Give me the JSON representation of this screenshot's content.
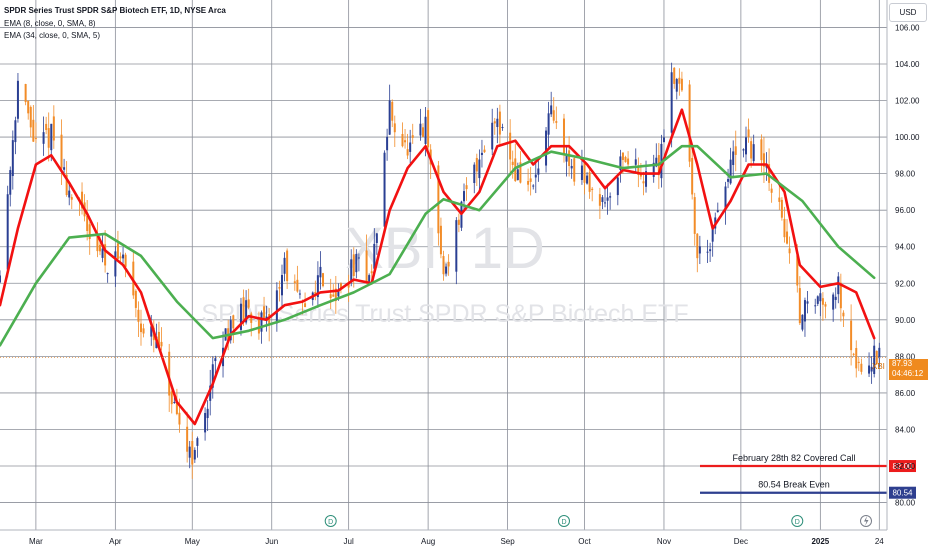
{
  "header": {
    "title": "SPDR Series Trust SPDR S&P Biotech ETF, 1D, NYSE Arca",
    "indicator_1": "EMA (8, close, 0, SMA, 8)",
    "indicator_2": "EMA (34, close, 0, SMA, 5)"
  },
  "currency_button": "USD",
  "watermark": {
    "symbol": "XBI, 1D",
    "name": "SPDR Series Trust SPDR S&P Biotech ETF"
  },
  "last_price": {
    "symbol": "XBI",
    "price": "87.93",
    "countdown": "04:46:12"
  },
  "events": [
    "D",
    "D",
    "D"
  ],
  "flash_icon": "lightning-icon",
  "colors": {
    "candle_up": "#2a3f93",
    "candle_down": "#f28c28",
    "ema_fast": "#f21111",
    "ema_slow": "#4caf50",
    "covered_call": "#ec1c1c",
    "break_even": "#2e3f8f",
    "price_tag": "#ef8a1e"
  },
  "chart_data": {
    "type": "candlestick",
    "y_axis": {
      "min": 78.5,
      "max": 107.5,
      "ticks": [
        80,
        82,
        84,
        86,
        88,
        90,
        92,
        94,
        96,
        98,
        100,
        102,
        104,
        106
      ]
    },
    "x_axis": {
      "range": [
        "2024-02-16",
        "2025-01-27"
      ],
      "ticks": [
        {
          "date": "2024-03-01",
          "label": "Mar"
        },
        {
          "date": "2024-04-01",
          "label": "Apr"
        },
        {
          "date": "2024-05-01",
          "label": "May"
        },
        {
          "date": "2024-06-01",
          "label": "Jun"
        },
        {
          "date": "2024-07-01",
          "label": "Jul"
        },
        {
          "date": "2024-08-01",
          "label": "Aug"
        },
        {
          "date": "2024-09-01",
          "label": "Sep"
        },
        {
          "date": "2024-10-01",
          "label": "Oct"
        },
        {
          "date": "2024-11-01",
          "label": "Nov"
        },
        {
          "date": "2024-12-01",
          "label": "Dec"
        },
        {
          "date": "2025-01-01",
          "label": "2025"
        },
        {
          "date": "2025-01-24",
          "label": "24"
        }
      ]
    },
    "grid": true,
    "price_path": [
      [
        "2024-02-16",
        92.5
      ],
      [
        "2024-02-23",
        103.0
      ],
      [
        "2024-03-01",
        99.5
      ],
      [
        "2024-03-07",
        100.2
      ],
      [
        "2024-03-14",
        97.0
      ],
      [
        "2024-03-21",
        95.2
      ],
      [
        "2024-03-28",
        93.2
      ],
      [
        "2024-04-04",
        93.4
      ],
      [
        "2024-04-11",
        89.8
      ],
      [
        "2024-04-18",
        88.5
      ],
      [
        "2024-04-25",
        84.2
      ],
      [
        "2024-05-02",
        82.5
      ],
      [
        "2024-05-09",
        87.0
      ],
      [
        "2024-05-16",
        90.0
      ],
      [
        "2024-05-23",
        90.5
      ],
      [
        "2024-05-30",
        89.5
      ],
      [
        "2024-06-06",
        93.0
      ],
      [
        "2024-06-13",
        90.5
      ],
      [
        "2024-06-20",
        92.5
      ],
      [
        "2024-06-27",
        91.2
      ],
      [
        "2024-07-03",
        93.0
      ],
      [
        "2024-07-10",
        92.5
      ],
      [
        "2024-07-17",
        101.5
      ],
      [
        "2024-07-24",
        99.0
      ],
      [
        "2024-07-31",
        100.5
      ],
      [
        "2024-08-07",
        92.5
      ],
      [
        "2024-08-14",
        96.0
      ],
      [
        "2024-08-21",
        99.0
      ],
      [
        "2024-08-28",
        101.3
      ],
      [
        "2024-09-04",
        98.0
      ],
      [
        "2024-09-11",
        97.2
      ],
      [
        "2024-09-18",
        101.2
      ],
      [
        "2024-09-25",
        98.5
      ],
      [
        "2024-10-02",
        97.5
      ],
      [
        "2024-10-09",
        96.5
      ],
      [
        "2024-10-16",
        99.0
      ],
      [
        "2024-10-23",
        98.0
      ],
      [
        "2024-10-30",
        98.5
      ],
      [
        "2024-11-04",
        103.5
      ],
      [
        "2024-11-08",
        103.0
      ],
      [
        "2024-11-14",
        93.5
      ],
      [
        "2024-11-20",
        94.5
      ],
      [
        "2024-11-27",
        98.5
      ],
      [
        "2024-12-04",
        99.5
      ],
      [
        "2024-12-11",
        98.2
      ],
      [
        "2024-12-18",
        95.0
      ],
      [
        "2024-12-24",
        90.5
      ],
      [
        "2025-01-01",
        91.2
      ],
      [
        "2025-01-08",
        91.8
      ],
      [
        "2025-01-15",
        87.5
      ],
      [
        "2025-01-22",
        88.0
      ]
    ],
    "series": [
      {
        "name": "EMA (8, close, 0, SMA, 8)",
        "color": "#f21111",
        "points": [
          [
            "2024-02-16",
            90.8
          ],
          [
            "2024-02-23",
            95.0
          ],
          [
            "2024-03-01",
            98.5
          ],
          [
            "2024-03-07",
            99.0
          ],
          [
            "2024-03-14",
            97.5
          ],
          [
            "2024-03-21",
            95.8
          ],
          [
            "2024-03-28",
            93.8
          ],
          [
            "2024-04-04",
            93.0
          ],
          [
            "2024-04-11",
            91.5
          ],
          [
            "2024-04-18",
            88.5
          ],
          [
            "2024-04-25",
            85.5
          ],
          [
            "2024-05-02",
            84.3
          ],
          [
            "2024-05-09",
            86.5
          ],
          [
            "2024-05-16",
            89.2
          ],
          [
            "2024-05-23",
            90.2
          ],
          [
            "2024-05-30",
            90.0
          ],
          [
            "2024-06-06",
            90.8
          ],
          [
            "2024-06-13",
            91.0
          ],
          [
            "2024-06-20",
            91.5
          ],
          [
            "2024-06-27",
            91.6
          ],
          [
            "2024-07-03",
            92.2
          ],
          [
            "2024-07-10",
            92.0
          ],
          [
            "2024-07-17",
            96.0
          ],
          [
            "2024-07-24",
            98.3
          ],
          [
            "2024-07-31",
            99.5
          ],
          [
            "2024-08-07",
            97.0
          ],
          [
            "2024-08-14",
            95.8
          ],
          [
            "2024-08-21",
            97.0
          ],
          [
            "2024-08-28",
            99.5
          ],
          [
            "2024-09-04",
            99.8
          ],
          [
            "2024-09-11",
            98.5
          ],
          [
            "2024-09-18",
            99.5
          ],
          [
            "2024-09-25",
            99.5
          ],
          [
            "2024-10-02",
            98.5
          ],
          [
            "2024-10-09",
            97.2
          ],
          [
            "2024-10-16",
            98.2
          ],
          [
            "2024-10-23",
            98.0
          ],
          [
            "2024-10-30",
            98.0
          ],
          [
            "2024-11-04",
            100.0
          ],
          [
            "2024-11-08",
            101.5
          ],
          [
            "2024-11-14",
            98.5
          ],
          [
            "2024-11-20",
            95.0
          ],
          [
            "2024-11-27",
            96.5
          ],
          [
            "2024-12-04",
            98.5
          ],
          [
            "2024-12-11",
            98.5
          ],
          [
            "2024-12-18",
            97.0
          ],
          [
            "2024-12-24",
            93.0
          ],
          [
            "2025-01-01",
            91.8
          ],
          [
            "2025-01-08",
            92.0
          ],
          [
            "2025-01-15",
            91.5
          ],
          [
            "2025-01-22",
            89.0
          ]
        ]
      },
      {
        "name": "EMA (34, close, 0, SMA, 5)",
        "color": "#4caf50",
        "points": [
          [
            "2024-02-16",
            88.6
          ],
          [
            "2024-03-01",
            92.0
          ],
          [
            "2024-03-14",
            94.5
          ],
          [
            "2024-03-28",
            94.7
          ],
          [
            "2024-04-11",
            93.5
          ],
          [
            "2024-04-25",
            91.0
          ],
          [
            "2024-05-09",
            89.0
          ],
          [
            "2024-05-23",
            89.4
          ],
          [
            "2024-06-06",
            90.0
          ],
          [
            "2024-06-20",
            90.8
          ],
          [
            "2024-07-03",
            91.5
          ],
          [
            "2024-07-17",
            92.5
          ],
          [
            "2024-07-31",
            95.8
          ],
          [
            "2024-08-07",
            96.6
          ],
          [
            "2024-08-21",
            96.0
          ],
          [
            "2024-09-04",
            98.3
          ],
          [
            "2024-09-18",
            99.2
          ],
          [
            "2024-10-02",
            98.8
          ],
          [
            "2024-10-16",
            98.3
          ],
          [
            "2024-10-30",
            98.5
          ],
          [
            "2024-11-08",
            99.5
          ],
          [
            "2024-11-14",
            99.5
          ],
          [
            "2024-11-27",
            97.8
          ],
          [
            "2024-12-11",
            98.0
          ],
          [
            "2024-12-25",
            96.5
          ],
          [
            "2025-01-08",
            94.0
          ],
          [
            "2025-01-22",
            92.3
          ]
        ]
      }
    ],
    "levels": [
      {
        "value": 82.0,
        "label": "February 28th 82 Covered Call",
        "axis_label": "82.00",
        "color": "#ec1c1c"
      },
      {
        "value": 80.54,
        "label": "80.54 Break Even",
        "axis_label": "80.54",
        "color": "#2e3f8f"
      }
    ],
    "last_price_value": 87.93,
    "dividend_dates": [
      "2024-06-24",
      "2024-09-23",
      "2024-12-23"
    ]
  }
}
